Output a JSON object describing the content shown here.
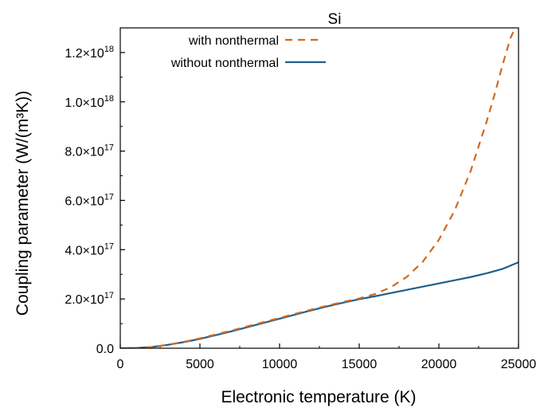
{
  "chart_data": {
    "type": "line",
    "title": "Si",
    "xlabel": "Electronic temperature (K)",
    "ylabel": "Coupling parameter (W/(m³K))",
    "xlim": [
      0,
      25000
    ],
    "ylim": [
      0,
      1.3e+18
    ],
    "x_ticks": [
      0,
      5000,
      10000,
      15000,
      20000,
      25000
    ],
    "x_tick_labels": [
      "0",
      "5000",
      "10000",
      "15000",
      "20000",
      "25000"
    ],
    "y_ticks": [
      0,
      2e+17,
      4e+17,
      6e+17,
      8e+17,
      1e+18,
      1.2e+18
    ],
    "y_tick_labels": [
      {
        "mantissa": "0.0",
        "exponent": ""
      },
      {
        "mantissa": "2.0×10",
        "exponent": "17"
      },
      {
        "mantissa": "4.0×10",
        "exponent": "17"
      },
      {
        "mantissa": "6.0×10",
        "exponent": "17"
      },
      {
        "mantissa": "8.0×10",
        "exponent": "17"
      },
      {
        "mantissa": "1.0×10",
        "exponent": "18"
      },
      {
        "mantissa": "1.2×10",
        "exponent": "18"
      }
    ],
    "legend_position": "top-left",
    "grid": false,
    "series": [
      {
        "name": "with nonthermal",
        "color": "#d2691e",
        "style": "dashed",
        "x": [
          0,
          1000,
          2000,
          3000,
          4000,
          5000,
          6000,
          7000,
          8000,
          9000,
          10000,
          11000,
          12000,
          13000,
          14000,
          15000,
          16000,
          17000,
          18000,
          19000,
          20000,
          21000,
          22000,
          23000,
          23500,
          24000,
          24500,
          24800
        ],
        "y": [
          0,
          1000000000000000.0,
          5000000000000000.0,
          1.4e+16,
          2.6e+16,
          4e+16,
          5.6e+16,
          7.2e+16,
          8.9e+16,
          1.06e+17,
          1.23e+17,
          1.4e+17,
          1.57e+17,
          1.73e+17,
          1.88e+17,
          2.02e+17,
          2.2e+17,
          2.48e+17,
          2.9e+17,
          3.52e+17,
          4.4e+17,
          5.6e+17,
          7.2e+17,
          9.2e+17,
          1.03e+18,
          1.15e+18,
          1.26e+18,
          1.3e+18
        ]
      },
      {
        "name": "without nonthermal",
        "color": "#1f5f8b",
        "style": "solid",
        "x": [
          0,
          1000,
          2000,
          3000,
          4000,
          5000,
          6000,
          7000,
          8000,
          9000,
          10000,
          11000,
          12000,
          13000,
          14000,
          15000,
          16000,
          17000,
          18000,
          19000,
          20000,
          21000,
          22000,
          23000,
          24000,
          25000
        ],
        "y": [
          0,
          1000000000000000.0,
          5000000000000000.0,
          1.4e+16,
          2.5e+16,
          3.8e+16,
          5.3e+16,
          6.9e+16,
          8.6e+16,
          1.03e+17,
          1.2e+17,
          1.37e+17,
          1.54e+17,
          1.7e+17,
          1.85e+17,
          1.99e+17,
          2.11e+17,
          2.24e+17,
          2.37e+17,
          2.5e+17,
          2.63e+17,
          2.76e+17,
          2.89e+17,
          3.04e+17,
          3.22e+17,
          3.49e+17
        ]
      }
    ]
  }
}
